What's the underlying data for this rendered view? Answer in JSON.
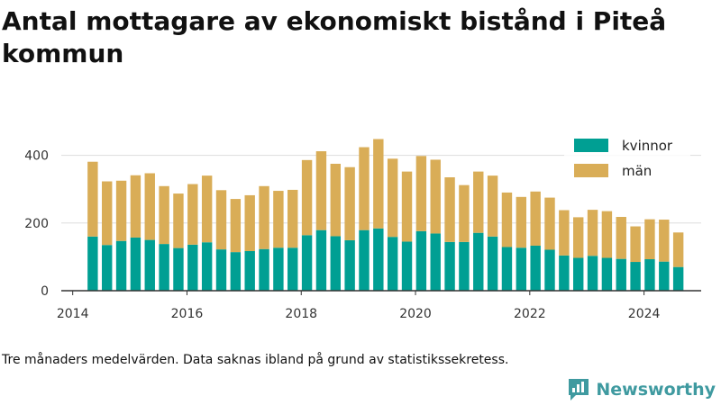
{
  "title": "Antal mottagare av ekonomiskt bistånd i Piteå kommun",
  "footnote": "Tre månaders medelvärden. Data saknas ibland på grund av statistikssekretess.",
  "brand": {
    "name": "Newsworthy",
    "icon": "newsworthy-logo-icon",
    "color": "#3f9aa0"
  },
  "chart_data": {
    "type": "bar",
    "stacked": true,
    "title": "Antal mottagare av ekonomiskt bistånd i Piteå kommun",
    "xlabel": "",
    "ylabel": "",
    "ylim": [
      0,
      460
    ],
    "yticks": [
      0,
      200,
      400
    ],
    "xlim": [
      2013.8,
      2025.0
    ],
    "xticks": [
      2014,
      2016,
      2018,
      2020,
      2022,
      2024
    ],
    "grid": "horizontal",
    "legend_position": "top-right",
    "x": [
      2014.35,
      2014.6,
      2014.85,
      2015.1,
      2015.35,
      2015.6,
      2015.85,
      2016.1,
      2016.35,
      2016.6,
      2016.85,
      2017.1,
      2017.35,
      2017.6,
      2017.85,
      2018.1,
      2018.35,
      2018.6,
      2018.85,
      2019.1,
      2019.35,
      2019.6,
      2019.85,
      2020.1,
      2020.35,
      2020.6,
      2020.85,
      2021.1,
      2021.35,
      2021.6,
      2021.85,
      2022.1,
      2022.35,
      2022.6,
      2022.85,
      2023.1,
      2023.35,
      2023.6,
      2023.85,
      2024.1,
      2024.35,
      2024.6
    ],
    "series": [
      {
        "name": "kvinnor",
        "color": "#009f93",
        "values": [
          160,
          135,
          147,
          157,
          150,
          138,
          126,
          136,
          143,
          122,
          114,
          117,
          123,
          127,
          127,
          164,
          179,
          161,
          149,
          179,
          184,
          159,
          145,
          176,
          169,
          144,
          144,
          171,
          160,
          129,
          127,
          133,
          121,
          104,
          97,
          103,
          97,
          94,
          85,
          93,
          86,
          70
        ]
      },
      {
        "name": "män",
        "color": "#d9ad57",
        "values": [
          221,
          188,
          178,
          184,
          197,
          171,
          161,
          179,
          197,
          175,
          157,
          165,
          186,
          168,
          171,
          222,
          233,
          214,
          216,
          245,
          264,
          231,
          207,
          222,
          218,
          191,
          168,
          181,
          180,
          161,
          150,
          160,
          154,
          134,
          120,
          136,
          138,
          124,
          105,
          118,
          124,
          102
        ]
      }
    ]
  }
}
